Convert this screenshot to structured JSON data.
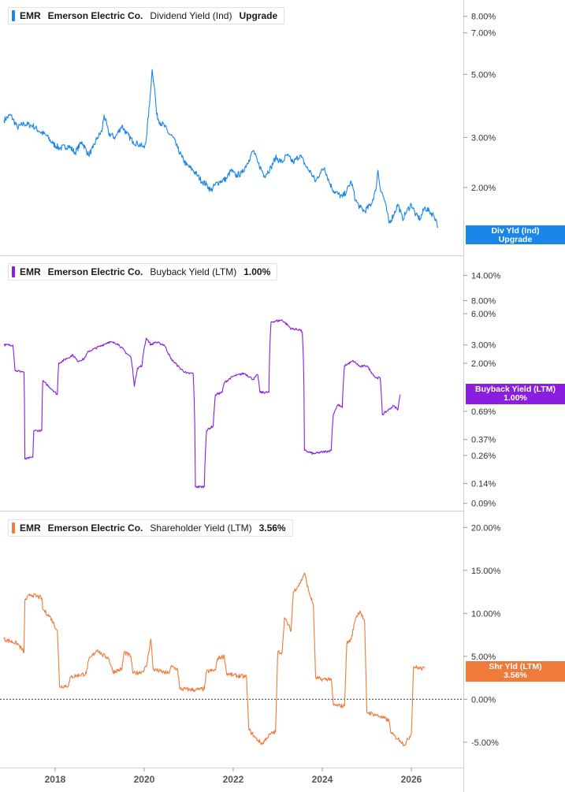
{
  "chart_data": [
    {
      "type": "line",
      "ticker": "EMR",
      "company": "Emerson Electric Co.",
      "metric": "Dividend Yield (Ind)",
      "legend_value": "Upgrade",
      "tag_lines": [
        "Div Yld (Ind)",
        "Upgrade"
      ],
      "color": "#1a86e8",
      "scale": "log",
      "ylim": [
        1.2,
        8.9
      ],
      "yticks": [
        {
          "value": 8.0,
          "label": "8.00%"
        },
        {
          "value": 7.0,
          "label": "7.00%"
        },
        {
          "value": 5.0,
          "label": "5.00%"
        },
        {
          "value": 3.0,
          "label": "3.00%"
        },
        {
          "value": 2.0,
          "label": "2.00%"
        }
      ],
      "points": [
        [
          2016.85,
          3.45
        ],
        [
          2017.0,
          3.6
        ],
        [
          2017.15,
          3.25
        ],
        [
          2017.3,
          3.35
        ],
        [
          2017.5,
          3.3
        ],
        [
          2017.65,
          3.15
        ],
        [
          2017.8,
          3.05
        ],
        [
          2017.95,
          2.85
        ],
        [
          2018.1,
          2.75
        ],
        [
          2018.3,
          2.8
        ],
        [
          2018.45,
          2.65
        ],
        [
          2018.6,
          2.9
        ],
        [
          2018.75,
          2.6
        ],
        [
          2018.85,
          2.75
        ],
        [
          2018.95,
          3.0
        ],
        [
          2019.05,
          3.15
        ],
        [
          2019.1,
          3.6
        ],
        [
          2019.2,
          3.1
        ],
        [
          2019.35,
          3.0
        ],
        [
          2019.5,
          3.3
        ],
        [
          2019.6,
          3.1
        ],
        [
          2019.75,
          2.9
        ],
        [
          2019.85,
          2.85
        ],
        [
          2019.95,
          2.8
        ],
        [
          2020.0,
          2.75
        ],
        [
          2020.05,
          3.0
        ],
        [
          2020.12,
          3.9
        ],
        [
          2020.18,
          5.2
        ],
        [
          2020.23,
          4.5
        ],
        [
          2020.28,
          3.6
        ],
        [
          2020.35,
          3.4
        ],
        [
          2020.45,
          3.3
        ],
        [
          2020.55,
          3.1
        ],
        [
          2020.65,
          3.0
        ],
        [
          2020.75,
          2.75
        ],
        [
          2020.85,
          2.55
        ],
        [
          2020.95,
          2.4
        ],
        [
          2021.1,
          2.3
        ],
        [
          2021.2,
          2.2
        ],
        [
          2021.3,
          2.1
        ],
        [
          2021.4,
          2.05
        ],
        [
          2021.5,
          1.95
        ],
        [
          2021.6,
          2.05
        ],
        [
          2021.7,
          2.1
        ],
        [
          2021.85,
          2.15
        ],
        [
          2021.95,
          2.3
        ],
        [
          2022.05,
          2.2
        ],
        [
          2022.2,
          2.25
        ],
        [
          2022.35,
          2.5
        ],
        [
          2022.45,
          2.7
        ],
        [
          2022.55,
          2.45
        ],
        [
          2022.7,
          2.2
        ],
        [
          2022.85,
          2.35
        ],
        [
          2022.95,
          2.55
        ],
        [
          2023.1,
          2.45
        ],
        [
          2023.2,
          2.6
        ],
        [
          2023.35,
          2.45
        ],
        [
          2023.5,
          2.6
        ],
        [
          2023.65,
          2.35
        ],
        [
          2023.75,
          2.25
        ],
        [
          2023.85,
          2.1
        ],
        [
          2023.95,
          2.25
        ],
        [
          2024.05,
          2.35
        ],
        [
          2024.15,
          2.1
        ],
        [
          2024.25,
          1.95
        ],
        [
          2024.35,
          1.9
        ],
        [
          2024.45,
          1.85
        ],
        [
          2024.55,
          1.95
        ],
        [
          2024.65,
          2.1
        ],
        [
          2024.75,
          1.8
        ],
        [
          2024.85,
          1.7
        ],
        [
          2024.95,
          1.65
        ],
        [
          2025.1,
          1.75
        ],
        [
          2025.2,
          1.95
        ],
        [
          2025.25,
          2.3
        ],
        [
          2025.3,
          2.0
        ],
        [
          2025.4,
          1.8
        ],
        [
          2025.5,
          1.5
        ],
        [
          2025.6,
          1.6
        ],
        [
          2025.7,
          1.75
        ],
        [
          2025.8,
          1.55
        ],
        [
          2025.9,
          1.65
        ],
        [
          2026.0,
          1.75
        ],
        [
          2026.1,
          1.6
        ],
        [
          2026.2,
          1.55
        ],
        [
          2026.3,
          1.7
        ],
        [
          2026.4,
          1.65
        ],
        [
          2026.5,
          1.6
        ],
        [
          2026.55,
          1.55
        ],
        [
          2026.6,
          1.45
        ]
      ]
    },
    {
      "type": "line",
      "ticker": "EMR",
      "company": "Emerson Electric Co.",
      "metric": "Buyback Yield (LTM)",
      "legend_value": "1.00%",
      "tag_lines": [
        "Buyback Yield (LTM)",
        "1.00%"
      ],
      "color": "#8a1de0",
      "scale": "log",
      "ylim": [
        0.085,
        20
      ],
      "yticks": [
        {
          "value": 14.0,
          "label": "14.00%"
        },
        {
          "value": 8.0,
          "label": "8.00%"
        },
        {
          "value": 6.0,
          "label": "6.00%"
        },
        {
          "value": 3.0,
          "label": "3.00%"
        },
        {
          "value": 2.0,
          "label": "2.00%"
        },
        {
          "value": 0.69,
          "label": "0.69%"
        },
        {
          "value": 0.37,
          "label": "0.37%"
        },
        {
          "value": 0.26,
          "label": "0.26%"
        },
        {
          "value": 0.14,
          "label": "0.14%"
        },
        {
          "value": 0.09,
          "label": "0.09%"
        }
      ],
      "points": [
        [
          2016.85,
          3.0
        ],
        [
          2017.05,
          3.0
        ],
        [
          2017.1,
          1.7
        ],
        [
          2017.3,
          1.65
        ],
        [
          2017.32,
          0.24
        ],
        [
          2017.5,
          0.25
        ],
        [
          2017.52,
          0.45
        ],
        [
          2017.7,
          0.45
        ],
        [
          2017.72,
          1.35
        ],
        [
          2017.95,
          1.1
        ],
        [
          2018.05,
          1.0
        ],
        [
          2018.08,
          2.0
        ],
        [
          2018.4,
          2.4
        ],
        [
          2018.5,
          2.1
        ],
        [
          2018.65,
          2.2
        ],
        [
          2018.75,
          2.6
        ],
        [
          2019.0,
          2.9
        ],
        [
          2019.2,
          3.2
        ],
        [
          2019.4,
          3.1
        ],
        [
          2019.6,
          2.5
        ],
        [
          2019.7,
          2.3
        ],
        [
          2019.78,
          1.2
        ],
        [
          2019.85,
          1.8
        ],
        [
          2019.95,
          1.9
        ],
        [
          2020.0,
          2.8
        ],
        [
          2020.05,
          3.5
        ],
        [
          2020.15,
          3.0
        ],
        [
          2020.25,
          3.2
        ],
        [
          2020.45,
          3.0
        ],
        [
          2020.6,
          2.2
        ],
        [
          2020.8,
          1.8
        ],
        [
          2020.95,
          1.6
        ],
        [
          2021.1,
          1.6
        ],
        [
          2021.15,
          0.13
        ],
        [
          2021.35,
          0.13
        ],
        [
          2021.4,
          0.45
        ],
        [
          2021.55,
          0.5
        ],
        [
          2021.6,
          1.0
        ],
        [
          2021.75,
          1.05
        ],
        [
          2021.8,
          1.3
        ],
        [
          2022.0,
          1.5
        ],
        [
          2022.25,
          1.6
        ],
        [
          2022.45,
          1.4
        ],
        [
          2022.55,
          1.55
        ],
        [
          2022.6,
          1.05
        ],
        [
          2022.8,
          1.05
        ],
        [
          2022.85,
          5.0
        ],
        [
          2023.1,
          5.2
        ],
        [
          2023.3,
          4.3
        ],
        [
          2023.5,
          4.2
        ],
        [
          2023.55,
          4.0
        ],
        [
          2023.6,
          0.29
        ],
        [
          2023.8,
          0.27
        ],
        [
          2024.0,
          0.28
        ],
        [
          2024.2,
          0.29
        ],
        [
          2024.25,
          0.65
        ],
        [
          2024.35,
          0.8
        ],
        [
          2024.45,
          0.75
        ],
        [
          2024.5,
          1.9
        ],
        [
          2024.7,
          2.1
        ],
        [
          2024.85,
          1.85
        ],
        [
          2025.0,
          1.9
        ],
        [
          2025.1,
          1.65
        ],
        [
          2025.2,
          1.45
        ],
        [
          2025.3,
          1.45
        ],
        [
          2025.35,
          0.64
        ],
        [
          2025.5,
          0.72
        ],
        [
          2025.6,
          0.78
        ],
        [
          2025.7,
          0.72
        ],
        [
          2025.75,
          1.0
        ]
      ]
    },
    {
      "type": "line",
      "ticker": "EMR",
      "company": "Emerson Electric Co.",
      "metric": "Shareholder Yield (LTM)",
      "legend_value": "3.56%",
      "tag_lines": [
        "Shr Yld (LTM)",
        "3.56%"
      ],
      "color": "#f07a3a",
      "scale": "linear",
      "ylim": [
        -7.4,
        21.5
      ],
      "zero_line": true,
      "yticks": [
        {
          "value": 20,
          "label": "20.00%"
        },
        {
          "value": 15,
          "label": "15.00%"
        },
        {
          "value": 10,
          "label": "10.00%"
        },
        {
          "value": 5,
          "label": "5.00%"
        },
        {
          "value": 0,
          "label": "0.00%"
        },
        {
          "value": -5,
          "label": "-5.00%"
        }
      ],
      "points": [
        [
          2016.85,
          7.0
        ],
        [
          2017.15,
          6.5
        ],
        [
          2017.3,
          5.5
        ],
        [
          2017.32,
          11.5
        ],
        [
          2017.45,
          12.2
        ],
        [
          2017.7,
          11.8
        ],
        [
          2017.72,
          10.5
        ],
        [
          2017.9,
          9.5
        ],
        [
          2018.05,
          8.0
        ],
        [
          2018.1,
          1.5
        ],
        [
          2018.3,
          1.6
        ],
        [
          2018.35,
          2.6
        ],
        [
          2018.7,
          3.0
        ],
        [
          2018.75,
          4.5
        ],
        [
          2018.95,
          5.8
        ],
        [
          2019.05,
          5.2
        ],
        [
          2019.2,
          4.8
        ],
        [
          2019.3,
          3.2
        ],
        [
          2019.5,
          3.5
        ],
        [
          2019.55,
          5.5
        ],
        [
          2019.7,
          5.0
        ],
        [
          2019.75,
          3.0
        ],
        [
          2019.95,
          3.2
        ],
        [
          2020.05,
          3.8
        ],
        [
          2020.15,
          7.0
        ],
        [
          2020.2,
          3.5
        ],
        [
          2020.4,
          3.2
        ],
        [
          2020.55,
          3.0
        ],
        [
          2020.6,
          3.8
        ],
        [
          2020.75,
          3.5
        ],
        [
          2020.8,
          1.2
        ],
        [
          2021.15,
          1.1
        ],
        [
          2021.35,
          1.2
        ],
        [
          2021.4,
          3.2
        ],
        [
          2021.6,
          3.4
        ],
        [
          2021.65,
          4.8
        ],
        [
          2021.8,
          5.0
        ],
        [
          2021.85,
          3.0
        ],
        [
          2022.0,
          2.8
        ],
        [
          2022.3,
          2.6
        ],
        [
          2022.35,
          -3.5
        ],
        [
          2022.5,
          -4.5
        ],
        [
          2022.65,
          -5.2
        ],
        [
          2022.75,
          -4.5
        ],
        [
          2022.85,
          -4.0
        ],
        [
          2022.95,
          -3.8
        ],
        [
          2023.0,
          5.5
        ],
        [
          2023.1,
          5.5
        ],
        [
          2023.15,
          9.5
        ],
        [
          2023.3,
          8.0
        ],
        [
          2023.35,
          12.5
        ],
        [
          2023.5,
          13.5
        ],
        [
          2023.6,
          14.7
        ],
        [
          2023.7,
          12.5
        ],
        [
          2023.8,
          11.0
        ],
        [
          2023.85,
          2.5
        ],
        [
          2024.0,
          2.3
        ],
        [
          2024.2,
          2.4
        ],
        [
          2024.25,
          -0.7
        ],
        [
          2024.5,
          -0.8
        ],
        [
          2024.55,
          6.5
        ],
        [
          2024.65,
          7.0
        ],
        [
          2024.75,
          9.5
        ],
        [
          2024.85,
          10.3
        ],
        [
          2024.95,
          9.0
        ],
        [
          2025.0,
          -1.5
        ],
        [
          2025.2,
          -1.8
        ],
        [
          2025.3,
          -2.0
        ],
        [
          2025.5,
          -2.5
        ],
        [
          2025.55,
          -4.0
        ],
        [
          2025.75,
          -4.8
        ],
        [
          2025.85,
          -5.3
        ],
        [
          2026.0,
          -4.0
        ],
        [
          2026.05,
          3.8
        ],
        [
          2026.2,
          3.6
        ],
        [
          2026.3,
          3.56
        ]
      ]
    }
  ],
  "x_axis": {
    "ticks": [
      {
        "value": 2018,
        "label": "2018"
      },
      {
        "value": 2020,
        "label": "2020"
      },
      {
        "value": 2022,
        "label": "2022"
      },
      {
        "value": 2024,
        "label": "2024"
      },
      {
        "value": 2026,
        "label": "2026"
      }
    ]
  }
}
